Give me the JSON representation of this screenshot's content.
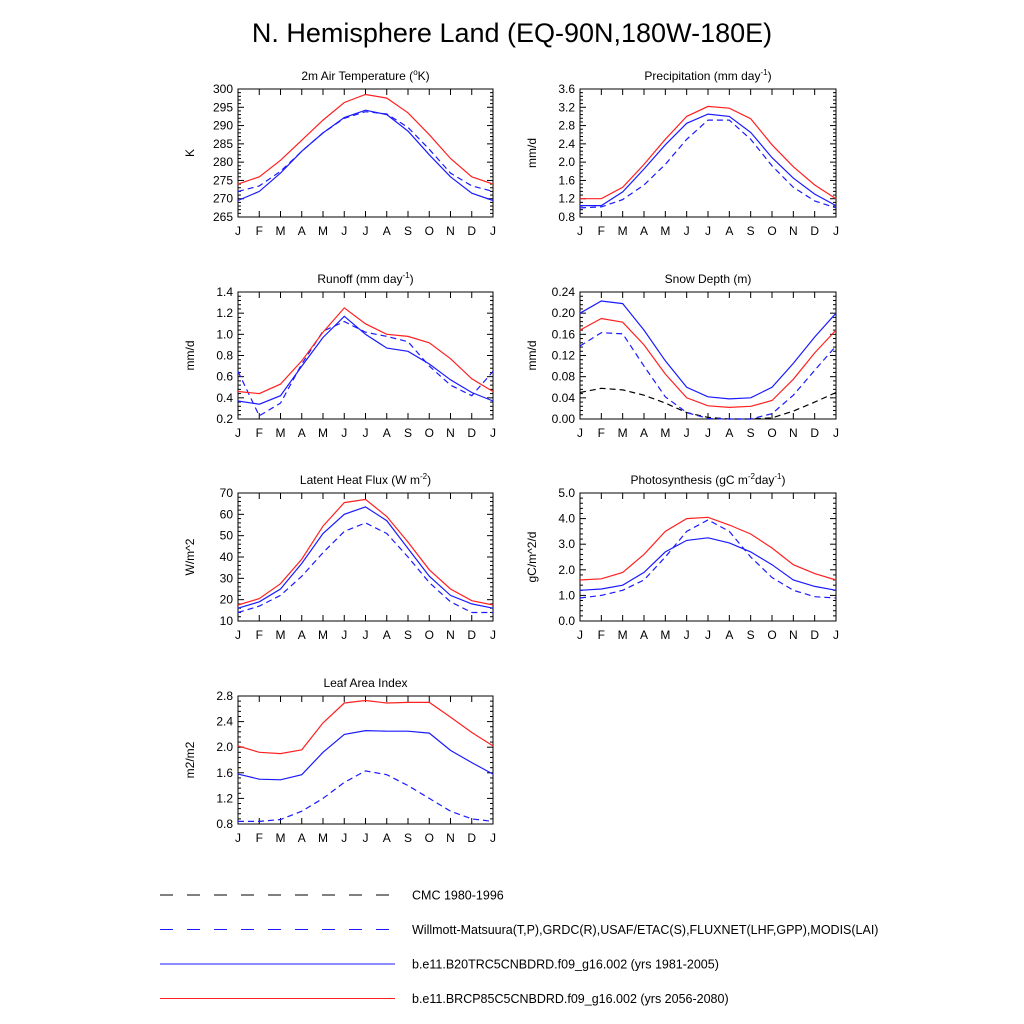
{
  "page_title": "N. Hemisphere Land (EQ-90N,180W-180E)",
  "months": [
    "J",
    "F",
    "M",
    "A",
    "M",
    "J",
    "J",
    "A",
    "S",
    "O",
    "N",
    "D",
    "J"
  ],
  "colors": {
    "cmc": "#000000",
    "obs": "#1a1aff",
    "b20tr": "#1a1aff",
    "brcp85": "#ff2020"
  },
  "legend": [
    {
      "key": "cmc",
      "label": "CMC 1980-1996",
      "dash": "dash-long"
    },
    {
      "key": "obs",
      "label": "Willmott-Matsuura(T,P),GRDC(R),USAF/ETAC(S),FLUXNET(LHF,GPP),MODIS(LAI)",
      "dash": "dash-long"
    },
    {
      "key": "b20tr",
      "label": "b.e11.B20TRC5CNBDRD.f09_g16.002 (yrs 1981-2005)",
      "dash": "solid"
    },
    {
      "key": "brcp85",
      "label": "b.e11.BRCP85C5CNBDRD.f09_g16.002 (yrs 2056-2080)",
      "dash": "solid"
    }
  ],
  "chart_data": [
    {
      "id": "air-temperature",
      "type": "line",
      "title": "2m Air Temperature (°K)",
      "title_parts": [
        {
          "t": "2m Air Temperature ("
        },
        {
          "t": "o",
          "sup": true
        },
        {
          "t": "K)"
        }
      ],
      "ylabel": "K",
      "ylim": [
        265,
        300
      ],
      "yticks": [
        265,
        270,
        275,
        280,
        285,
        290,
        295,
        300
      ],
      "tick_decimals": 0,
      "series": [
        {
          "name": "Willmott-Matsuura",
          "key": "obs",
          "dash": true,
          "values": [
            272,
            273.5,
            277.5,
            283,
            288,
            292,
            293.8,
            293.2,
            289.5,
            283.5,
            277,
            273.5,
            272
          ]
        },
        {
          "name": "b.e11.B20TRC5CNBDRD.f09_g16.002",
          "key": "b20tr",
          "dash": false,
          "values": [
            269.5,
            272,
            277,
            283,
            288,
            292.2,
            294.2,
            293,
            288.5,
            282,
            276,
            271.5,
            269.5
          ]
        },
        {
          "name": "b.e11.BRCP85C5CNBDRD.f09_g16.002",
          "key": "brcp85",
          "dash": false,
          "values": [
            274,
            276,
            280.5,
            286,
            291.5,
            296.3,
            298.5,
            297.5,
            293.5,
            287.5,
            281,
            276,
            274
          ]
        }
      ]
    },
    {
      "id": "precipitation",
      "type": "line",
      "title": "Precipitation (mm day-1)",
      "title_parts": [
        {
          "t": "Precipitation (mm day"
        },
        {
          "t": "-1",
          "sup": true
        },
        {
          "t": ")"
        }
      ],
      "ylabel": "mm/d",
      "ylim": [
        0.8,
        3.6
      ],
      "yticks": [
        0.8,
        1.2,
        1.6,
        2.0,
        2.4,
        2.8,
        3.2,
        3.6
      ],
      "tick_decimals": 1,
      "series": [
        {
          "name": "Willmott-Matsuura",
          "key": "obs",
          "dash": true,
          "values": [
            1.0,
            1.02,
            1.18,
            1.5,
            1.95,
            2.5,
            2.92,
            2.92,
            2.5,
            1.92,
            1.45,
            1.15,
            1.0
          ]
        },
        {
          "name": "b.e11.B20TRC5CNBDRD.f09_g16.002",
          "key": "b20tr",
          "dash": false,
          "values": [
            1.05,
            1.05,
            1.35,
            1.85,
            2.38,
            2.85,
            3.05,
            3.0,
            2.65,
            2.1,
            1.65,
            1.3,
            1.05
          ]
        },
        {
          "name": "b.e11.BRCP85C5CNBDRD.f09_g16.002",
          "key": "brcp85",
          "dash": false,
          "values": [
            1.2,
            1.2,
            1.45,
            1.95,
            2.5,
            3.0,
            3.22,
            3.18,
            2.95,
            2.38,
            1.9,
            1.5,
            1.2
          ]
        }
      ]
    },
    {
      "id": "runoff",
      "type": "line",
      "title": "Runoff (mm day-1)",
      "title_parts": [
        {
          "t": "Runoff (mm day"
        },
        {
          "t": "-1",
          "sup": true
        },
        {
          "t": ")"
        }
      ],
      "ylabel": "mm/d",
      "ylim": [
        0.2,
        1.4
      ],
      "yticks": [
        0.2,
        0.4,
        0.6,
        0.8,
        1.0,
        1.2,
        1.4
      ],
      "tick_decimals": 1,
      "series": [
        {
          "name": "GRDC",
          "key": "obs",
          "dash": true,
          "values": [
            0.65,
            0.23,
            0.35,
            0.72,
            1.03,
            1.12,
            1.02,
            0.98,
            0.93,
            0.7,
            0.52,
            0.42,
            0.65
          ]
        },
        {
          "name": "b.e11.B20TRC5CNBDRD.f09_g16.002",
          "key": "b20tr",
          "dash": false,
          "values": [
            0.37,
            0.34,
            0.42,
            0.7,
            0.97,
            1.17,
            1.0,
            0.87,
            0.84,
            0.72,
            0.57,
            0.45,
            0.37
          ]
        },
        {
          "name": "b.e11.BRCP85C5CNBDRD.f09_g16.002",
          "key": "brcp85",
          "dash": false,
          "values": [
            0.46,
            0.44,
            0.53,
            0.75,
            1.02,
            1.25,
            1.1,
            1.0,
            0.98,
            0.92,
            0.77,
            0.58,
            0.46
          ]
        }
      ]
    },
    {
      "id": "snow-depth",
      "type": "line",
      "title": "Snow Depth (m)",
      "title_parts": [
        {
          "t": "Snow Depth (m)"
        }
      ],
      "ylabel": "mm/d",
      "ylim": [
        0.0,
        0.24
      ],
      "yticks": [
        0.0,
        0.04,
        0.08,
        0.12,
        0.16,
        0.2,
        0.24
      ],
      "tick_decimals": 2,
      "series": [
        {
          "name": "CMC 1980-1996",
          "key": "cmc",
          "dash": true,
          "values": [
            0.05,
            0.058,
            0.055,
            0.045,
            0.03,
            0.012,
            0.003,
            0.0,
            0.0,
            0.002,
            0.015,
            0.032,
            0.05
          ]
        },
        {
          "name": "USAF/ETAC",
          "key": "obs",
          "dash": true,
          "values": [
            0.138,
            0.163,
            0.161,
            0.1,
            0.042,
            0.012,
            0.001,
            0.0,
            0.0,
            0.01,
            0.045,
            0.092,
            0.138
          ]
        },
        {
          "name": "b.e11.B20TRC5CNBDRD.f09_g16.002",
          "key": "b20tr",
          "dash": false,
          "values": [
            0.2,
            0.223,
            0.218,
            0.168,
            0.11,
            0.06,
            0.042,
            0.038,
            0.04,
            0.06,
            0.105,
            0.155,
            0.2
          ]
        },
        {
          "name": "b.e11.BRCP85C5CNBDRD.f09_g16.002",
          "key": "brcp85",
          "dash": false,
          "values": [
            0.168,
            0.19,
            0.183,
            0.14,
            0.085,
            0.04,
            0.025,
            0.022,
            0.024,
            0.035,
            0.075,
            0.125,
            0.168
          ]
        }
      ]
    },
    {
      "id": "latent-heat-flux",
      "type": "line",
      "title": "Latent Heat Flux (W m-2)",
      "title_parts": [
        {
          "t": "Latent Heat Flux (W m"
        },
        {
          "t": "-2",
          "sup": true
        },
        {
          "t": ")"
        }
      ],
      "ylabel": "W/m^2",
      "ylim": [
        10,
        70
      ],
      "yticks": [
        10,
        20,
        30,
        40,
        50,
        60,
        70
      ],
      "tick_decimals": 0,
      "series": [
        {
          "name": "FLUXNET",
          "key": "obs",
          "dash": true,
          "values": [
            14,
            17,
            22,
            31,
            42,
            52,
            56,
            51,
            40,
            28,
            19,
            14,
            14
          ]
        },
        {
          "name": "b.e11.B20TRC5CNBDRD.f09_g16.002",
          "key": "b20tr",
          "dash": false,
          "values": [
            16,
            19,
            25,
            37,
            51,
            60,
            63.5,
            57,
            44,
            31,
            22,
            18,
            16
          ]
        },
        {
          "name": "b.e11.BRCP85C5CNBDRD.f09_g16.002",
          "key": "brcp85",
          "dash": false,
          "values": [
            17.5,
            20.5,
            27.5,
            39,
            54.5,
            65.5,
            67,
            59,
            47,
            34,
            25,
            19.5,
            17.5
          ]
        }
      ]
    },
    {
      "id": "photosynthesis",
      "type": "line",
      "title": "Photosynthesis (gC m-2day-1)",
      "title_parts": [
        {
          "t": "Photosynthesis (gC m"
        },
        {
          "t": "-2",
          "sup": true
        },
        {
          "t": "day"
        },
        {
          "t": "-1",
          "sup": true
        },
        {
          "t": ")"
        }
      ],
      "ylabel": "gC/m^2/d",
      "ylim": [
        0.0,
        5.0
      ],
      "yticks": [
        0.0,
        1.0,
        2.0,
        3.0,
        4.0,
        5.0
      ],
      "tick_decimals": 1,
      "series": [
        {
          "name": "FLUXNET",
          "key": "obs",
          "dash": true,
          "values": [
            0.9,
            1.0,
            1.2,
            1.6,
            2.5,
            3.5,
            3.95,
            3.5,
            2.5,
            1.7,
            1.2,
            0.95,
            0.9
          ]
        },
        {
          "name": "b.e11.B20TRC5CNBDRD.f09_g16.002",
          "key": "b20tr",
          "dash": false,
          "values": [
            1.2,
            1.25,
            1.4,
            1.9,
            2.7,
            3.15,
            3.25,
            3.05,
            2.7,
            2.2,
            1.6,
            1.35,
            1.2
          ]
        },
        {
          "name": "b.e11.BRCP85C5CNBDRD.f09_g16.002",
          "key": "brcp85",
          "dash": false,
          "values": [
            1.6,
            1.65,
            1.9,
            2.6,
            3.5,
            4.0,
            4.05,
            3.75,
            3.4,
            2.85,
            2.2,
            1.85,
            1.6
          ]
        }
      ]
    },
    {
      "id": "leaf-area-index",
      "type": "line",
      "title": "Leaf Area Index",
      "title_parts": [
        {
          "t": "Leaf Area Index"
        }
      ],
      "ylabel": "m2/m2",
      "ylim": [
        0.8,
        2.8
      ],
      "yticks": [
        0.8,
        1.2,
        1.6,
        2.0,
        2.4,
        2.8
      ],
      "tick_decimals": 1,
      "series": [
        {
          "name": "MODIS",
          "key": "obs",
          "dash": true,
          "values": [
            0.84,
            0.84,
            0.87,
            1.0,
            1.2,
            1.45,
            1.63,
            1.57,
            1.4,
            1.2,
            1.0,
            0.88,
            0.84
          ]
        },
        {
          "name": "b.e11.B20TRC5CNBDRD.f09_g16.002",
          "key": "b20tr",
          "dash": false,
          "values": [
            1.58,
            1.5,
            1.49,
            1.57,
            1.92,
            2.2,
            2.26,
            2.25,
            2.25,
            2.22,
            1.95,
            1.76,
            1.58
          ]
        },
        {
          "name": "b.e11.BRCP85C5CNBDRD.f09_g16.002",
          "key": "brcp85",
          "dash": false,
          "values": [
            2.02,
            1.92,
            1.9,
            1.96,
            2.38,
            2.69,
            2.73,
            2.69,
            2.7,
            2.7,
            2.47,
            2.23,
            2.02
          ]
        }
      ]
    }
  ]
}
